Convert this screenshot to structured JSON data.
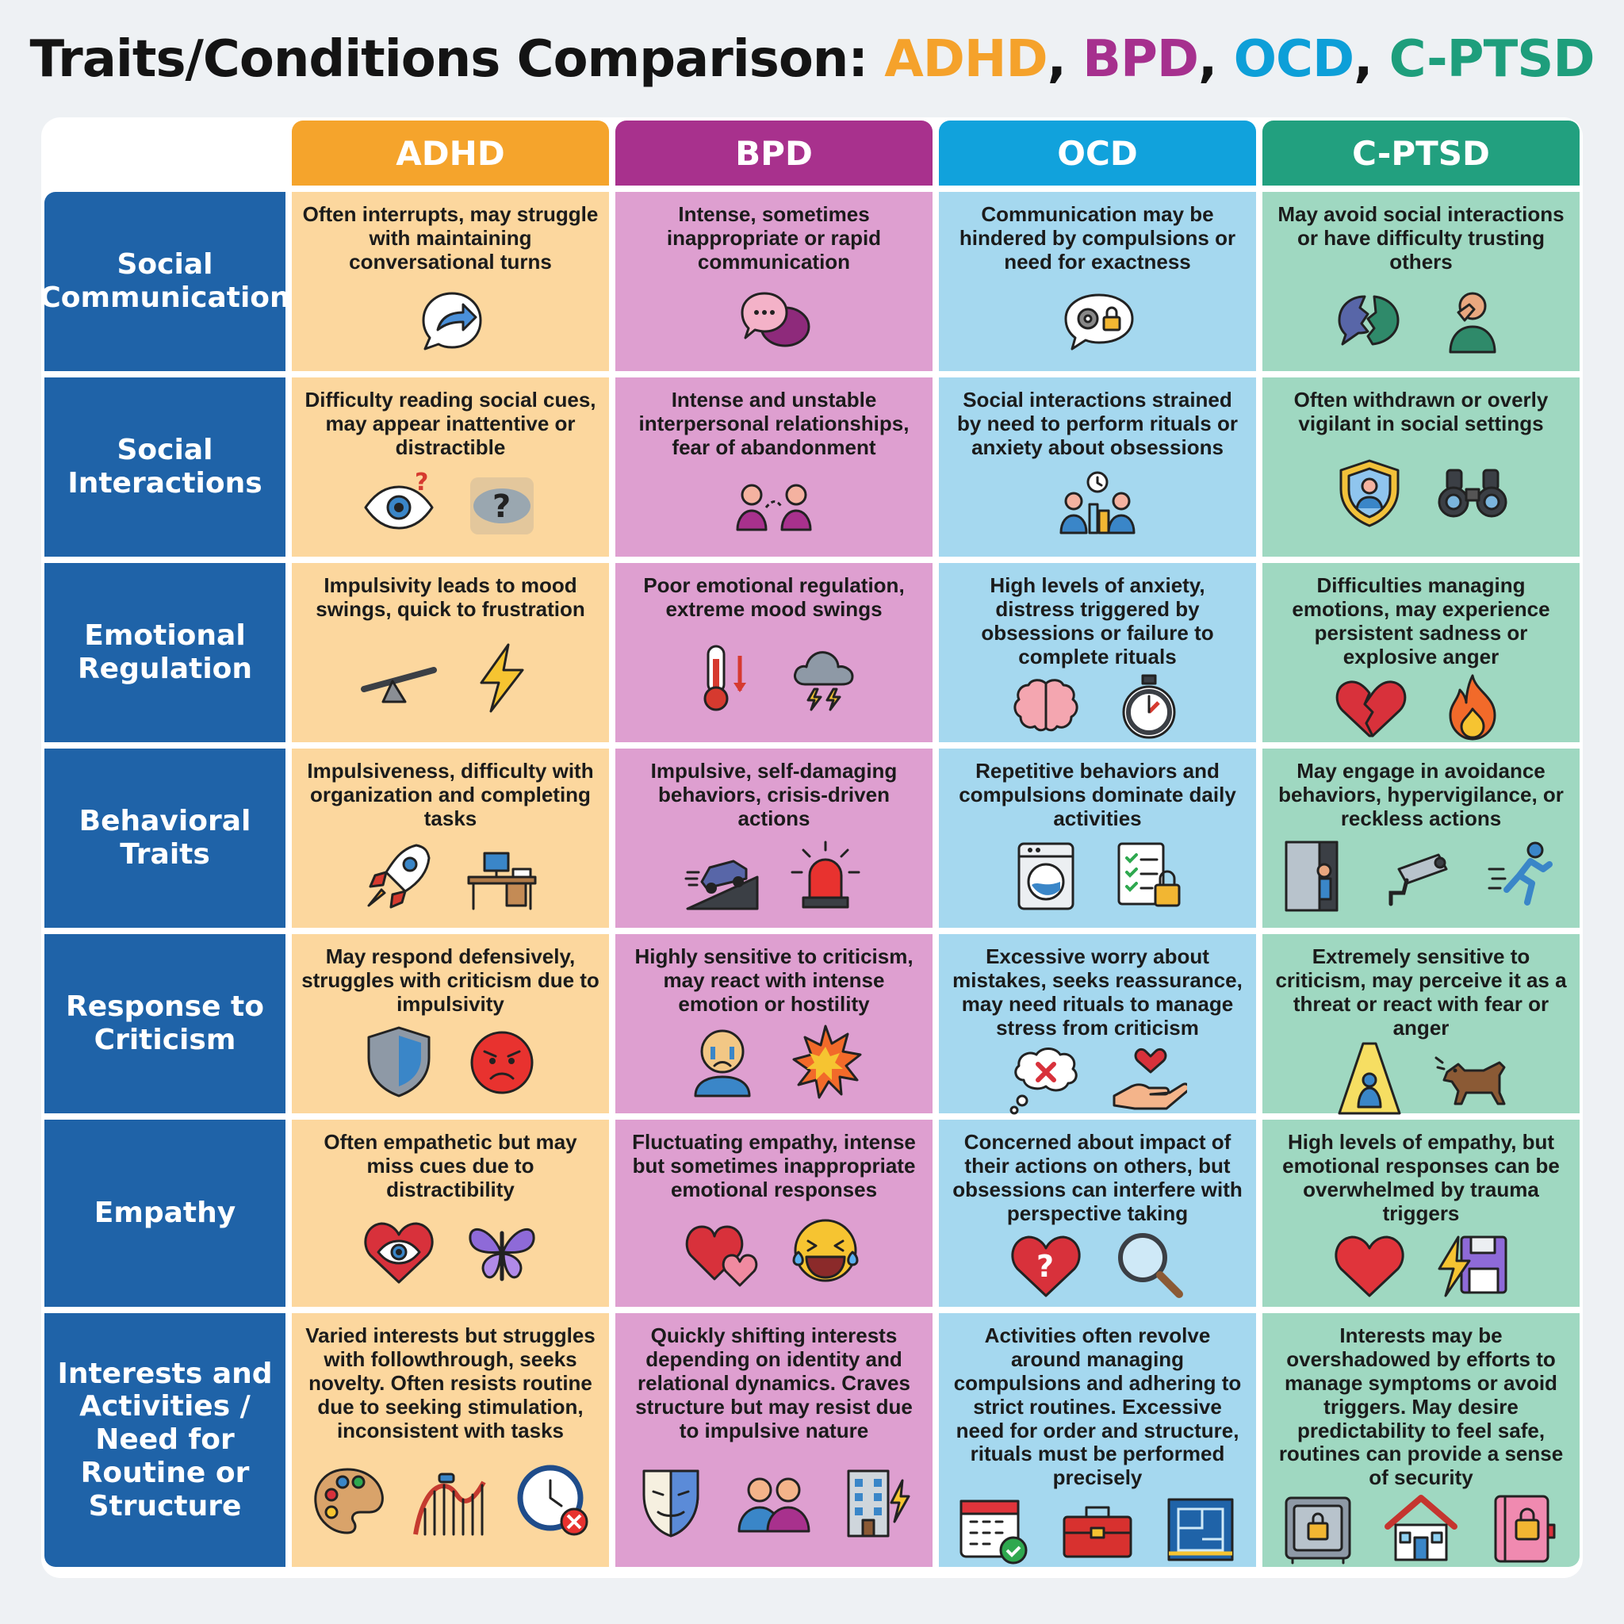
{
  "title": {
    "prefix": "Traits/Conditions Comparison: ",
    "adhd": "ADHD",
    "sep1": ", ",
    "bpd": "BPD",
    "sep2": ", ",
    "ocd": "OCD",
    "sep3": ", ",
    "cptsd": "C-PTSD"
  },
  "colors": {
    "adhd": "#f5a42c",
    "bpd": "#a8318d",
    "ocd": "#11a2dc",
    "cptsd": "#22a07f",
    "row_header": "#1f63a8"
  },
  "columns": [
    "ADHD",
    "BPD",
    "OCD",
    "C-PTSD"
  ],
  "rows": [
    {
      "label": "Social Communication",
      "cells": [
        {
          "text": "Often interrupts, may struggle with maintaining conversational turns",
          "icons": [
            "speech-bubble-arrow-icon"
          ]
        },
        {
          "text": "Intense, sometimes inappropriate or rapid communication",
          "icons": [
            "overlapping-speech-bubbles-icon"
          ]
        },
        {
          "text": "Communication may be hindered by compulsions or need for exactness",
          "icons": [
            "gear-lock-bubble-icon"
          ]
        },
        {
          "text": "May avoid social interactions or have difficulty trusting others",
          "icons": [
            "broken-bubble-icon",
            "person-covering-face-icon"
          ]
        }
      ]
    },
    {
      "label": "Social Interactions",
      "cells": [
        {
          "text": "Difficulty reading social cues, may appear inattentive or distractible",
          "icons": [
            "eye-question-icon",
            "blurred-eye-question-icon"
          ]
        },
        {
          "text": "Intense and unstable interpersonal relationships, fear of abandonment",
          "icons": [
            "two-people-dashed-link-icon"
          ]
        },
        {
          "text": "Social interactions strained by need to perform rituals or anxiety about obsessions",
          "icons": [
            "people-cleaning-clock-icon"
          ]
        },
        {
          "text": "Often withdrawn or overly vigilant in social settings",
          "icons": [
            "shield-person-icon",
            "binoculars-icon"
          ]
        }
      ]
    },
    {
      "label": "Emotional Regulation",
      "cells": [
        {
          "text": "Impulsivity leads to mood swings, quick to frustration",
          "icons": [
            "seesaw-icon",
            "lightning-icon"
          ]
        },
        {
          "text": "Poor emotional regulation, extreme mood swings",
          "icons": [
            "thermometer-icon",
            "storm-cloud-icon"
          ]
        },
        {
          "text": "High levels of anxiety, distress triggered by obsessions or failure to complete rituals",
          "icons": [
            "brain-icon",
            "stopwatch-icon"
          ]
        },
        {
          "text": "Difficulties managing emotions, may experience persistent sadness or explosive anger",
          "icons": [
            "broken-heart-icon",
            "fire-icon"
          ]
        }
      ]
    },
    {
      "label": "Behavioral Traits",
      "cells": [
        {
          "text": "Impulsiveness, difficulty with organization and completing tasks",
          "icons": [
            "rocket-icon",
            "messy-desk-icon"
          ]
        },
        {
          "text": "Impulsive, self-damaging behaviors, crisis-driven actions",
          "icons": [
            "car-ramp-icon",
            "siren-icon"
          ]
        },
        {
          "text": "Repetitive behaviors and compulsions dominate daily activities",
          "icons": [
            "washing-machine-icon",
            "checklist-lock-icon"
          ]
        },
        {
          "text": "May engage in avoidance behaviors, hypervigilance, or reckless actions",
          "icons": [
            "hiding-door-icon",
            "security-camera-icon",
            "running-person-icon"
          ]
        }
      ]
    },
    {
      "label": "Response to Criticism",
      "cells": [
        {
          "text": "May respond defensively, struggles with criticism due to impulsivity",
          "icons": [
            "shield-icon",
            "angry-face-icon"
          ]
        },
        {
          "text": "Highly sensitive to criticism, may react with intense emotion or hostility",
          "icons": [
            "crying-person-icon",
            "explosion-icon"
          ]
        },
        {
          "text": "Excessive worry about mistakes, seeks reassurance, may need rituals to manage stress from criticism",
          "icons": [
            "thought-bubble-x-icon",
            "hand-heart-icon"
          ]
        },
        {
          "text": "Extremely sensitive to criticism, may perceive it as a threat or react with fear or anger",
          "icons": [
            "spotlight-crouched-person-icon",
            "barking-dog-icon"
          ]
        }
      ]
    },
    {
      "label": "Empathy",
      "cells": [
        {
          "text": "Often empathetic but may miss cues due to distractibility",
          "icons": [
            "heart-eye-icon",
            "butterfly-icon"
          ]
        },
        {
          "text": "Fluctuating empathy, intense but sometimes inappropriate emotional responses",
          "icons": [
            "two-hearts-icon",
            "laughing-crying-face-icon"
          ]
        },
        {
          "text": "Concerned about impact of their actions on others, but obsessions can interfere with perspective taking",
          "icons": [
            "heart-question-icon",
            "magnifying-glass-icon"
          ]
        },
        {
          "text": "High levels of empathy, but emotional responses can be overwhelmed by trauma triggers",
          "icons": [
            "heart-icon",
            "lightning-floppy-icon"
          ]
        }
      ]
    },
    {
      "label": "Interests and Activities / Need for Routine or Structure",
      "cells": [
        {
          "text": "Varied interests but struggles with followthrough, seeks novelty. Often resists routine due to seeking stimulation, inconsistent with tasks",
          "icons": [
            "paint-palette-icon",
            "roller-coaster-icon",
            "clock-x-icon"
          ]
        },
        {
          "text": "Quickly shifting interests depending on identity and relational dynamics. Craves structure but may resist due to impulsive nature",
          "icons": [
            "theater-mask-icon",
            "two-people-icon",
            "building-lightning-icon"
          ]
        },
        {
          "text": "Activities often revolve around managing compulsions and adhering to strict routines. Excessive need for order and structure, rituals must be performed precisely",
          "icons": [
            "calendar-check-icon",
            "toolbox-icon",
            "blueprint-icon"
          ]
        },
        {
          "text": "Interests may be overshadowed by efforts to manage symptoms or avoid triggers. May desire predictability to feel safe, routines can provide a sense of security",
          "icons": [
            "safe-icon",
            "house-icon",
            "locked-diary-icon"
          ]
        }
      ]
    }
  ]
}
